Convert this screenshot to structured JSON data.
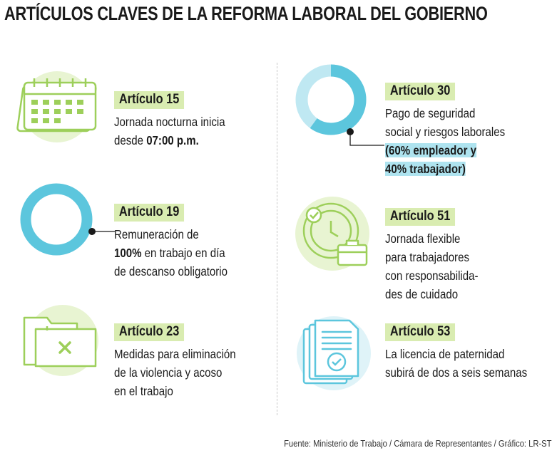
{
  "title": "ARTÍCULOS CLAVES DE LA REFORMA LABORAL DEL GOBIERNO",
  "colors": {
    "green": "#9dcf5a",
    "green_light": "#e8f4d2",
    "blue": "#5cc6dd",
    "blue_light": "#bfe8f2",
    "tag_bg": "#d9ecb1",
    "highlight": "#aee3ef"
  },
  "left": [
    {
      "icon": "calendar-icon",
      "tag": "Artículo 15",
      "line1": "Jornada nocturna inicia",
      "line2_pre": "desde ",
      "line2_bold": "07:00 p.m."
    },
    {
      "icon": "donut-100-icon",
      "tag": "Artículo 19",
      "line1": "Remuneración de",
      "line2_bold": "100%",
      "line2_rest": " en trabajo en día",
      "line3": "de descanso obligatorio"
    },
    {
      "icon": "folder-x-icon",
      "tag": "Artículo 23",
      "line1": "Medidas para eliminación",
      "line2": "de la violencia y acoso",
      "line3": "en el trabajo"
    }
  ],
  "right": [
    {
      "icon": "donut-60-40-icon",
      "tag": "Artículo 30",
      "line1": "Pago de seguridad",
      "line2": "social y riesgos laborales",
      "line3": "(60% empleador y",
      "line4": "40% trabajador)",
      "donut": {
        "empleador": 60,
        "trabajador": 40
      }
    },
    {
      "icon": "clock-briefcase-icon",
      "tag": "Artículo 51",
      "line1": "Jornada flexible",
      "line2": "para trabajadores",
      "line3": "con responsabilida-",
      "line4": "des de cuidado"
    },
    {
      "icon": "document-check-icon",
      "tag": "Artículo 53",
      "line1": "La licencia de paternidad",
      "line2": "subirá de dos a seis semanas"
    }
  ],
  "source": "Fuente: Ministerio de Trabajo / Cámara de Representantes / Gráfico: LR-ST"
}
